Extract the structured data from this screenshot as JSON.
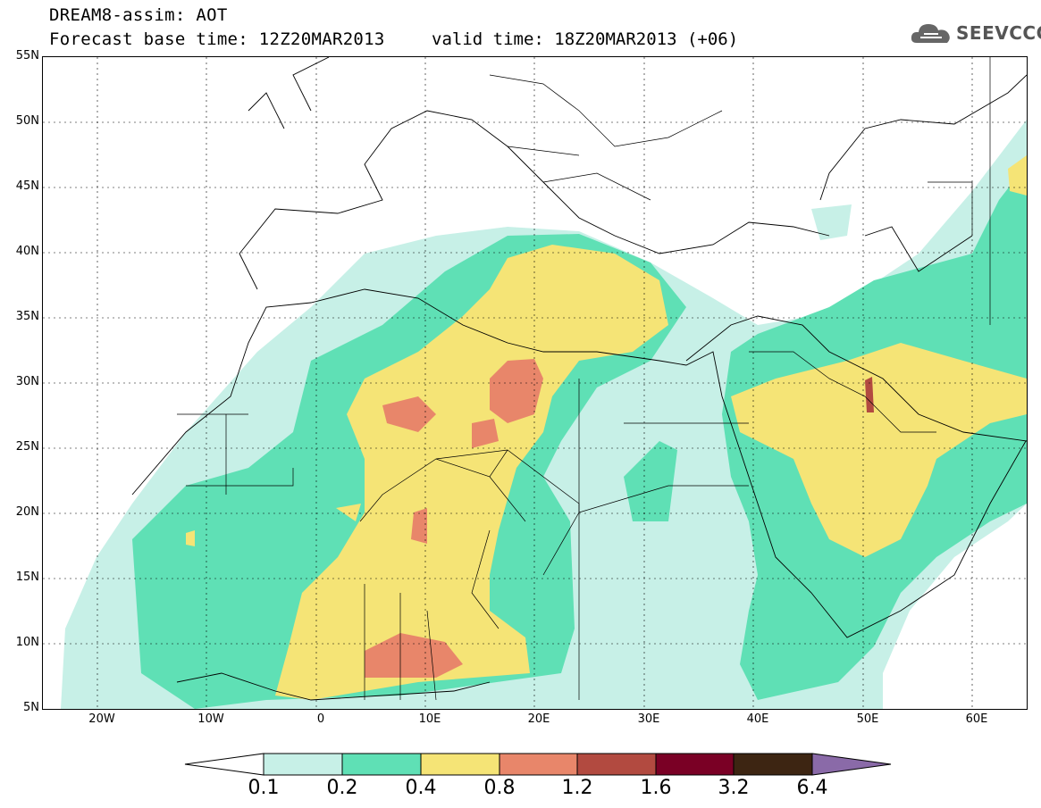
{
  "header": {
    "title": "DREAM8-assim: AOT",
    "base_time": "Forecast base time: 12Z20MAR2013",
    "valid_time": "valid time: 18Z20MAR2013 (+06)"
  },
  "logo": {
    "text": "SEEVCCC",
    "icon": "cloud-icon"
  },
  "axes": {
    "lat_labels": [
      "55N",
      "50N",
      "45N",
      "40N",
      "35N",
      "30N",
      "25N",
      "20N",
      "15N",
      "10N",
      "5N"
    ],
    "lon_labels": [
      "20W",
      "10W",
      "0",
      "10E",
      "20E",
      "30E",
      "40E",
      "50E",
      "60E"
    ],
    "lat_range": [
      5,
      55
    ],
    "lon_range": [
      -25,
      65
    ],
    "grid": "dashed"
  },
  "colorbar": {
    "labels": [
      "0.1",
      "0.2",
      "0.4",
      "0.8",
      "1.2",
      "1.6",
      "3.2",
      "6.4"
    ],
    "colors": [
      "#ffffff",
      "#c7f0e7",
      "#5fe0b5",
      "#f5e476",
      "#e8866a",
      "#b24a40",
      "#7a0025",
      "#3d2512",
      "#8a6aa8"
    ]
  }
}
